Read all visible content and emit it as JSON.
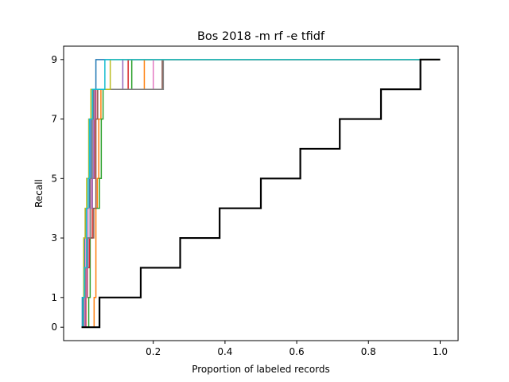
{
  "chart_data": {
    "type": "line",
    "title": "Bos 2018 -m rf -e tfidf",
    "xlabel": "Proportion of labeled records",
    "ylabel": "Recall",
    "xlim": [
      -0.05,
      1.05
    ],
    "ylim": [
      -0.45,
      9.45
    ],
    "xticks": [
      {
        "value": 0.2,
        "label": "0.2"
      },
      {
        "value": 0.4,
        "label": "0.4"
      },
      {
        "value": 0.6,
        "label": "0.6"
      },
      {
        "value": 0.8,
        "label": "0.8"
      },
      {
        "value": 1.0,
        "label": "1.0"
      }
    ],
    "yticks": [
      {
        "value": 0,
        "label": "0"
      },
      {
        "value": 1,
        "label": "1"
      },
      {
        "value": 3,
        "label": "3"
      },
      {
        "value": 5,
        "label": "5"
      },
      {
        "value": 7,
        "label": "7"
      },
      {
        "value": 9,
        "label": "9"
      }
    ],
    "grid": false,
    "series": [
      {
        "color": "#1f77b4",
        "width": 1.5,
        "steps": [
          [
            0,
            0
          ],
          [
            0.002,
            1
          ],
          [
            0.006,
            2
          ],
          [
            0.008,
            3
          ],
          [
            0.012,
            4
          ],
          [
            0.022,
            5
          ],
          [
            0.026,
            7
          ],
          [
            0.032,
            8
          ],
          [
            0.04,
            9
          ],
          [
            1.0,
            9
          ]
        ]
      },
      {
        "color": "#ff7f0e",
        "width": 1.5,
        "steps": [
          [
            0,
            0
          ],
          [
            0.035,
            1
          ],
          [
            0.04,
            4
          ],
          [
            0.044,
            5
          ],
          [
            0.048,
            7
          ],
          [
            0.054,
            8
          ],
          [
            0.175,
            9
          ],
          [
            1.0,
            9
          ]
        ]
      },
      {
        "color": "#2ca02c",
        "width": 1.5,
        "steps": [
          [
            0,
            0
          ],
          [
            0.02,
            1
          ],
          [
            0.024,
            4
          ],
          [
            0.05,
            5
          ],
          [
            0.055,
            7
          ],
          [
            0.06,
            8
          ],
          [
            0.14,
            9
          ],
          [
            1.0,
            9
          ]
        ]
      },
      {
        "color": "#d62728",
        "width": 1.5,
        "steps": [
          [
            0,
            0
          ],
          [
            0.012,
            1
          ],
          [
            0.016,
            2
          ],
          [
            0.022,
            3
          ],
          [
            0.03,
            5
          ],
          [
            0.036,
            7
          ],
          [
            0.04,
            8
          ],
          [
            0.13,
            9
          ],
          [
            1.0,
            9
          ]
        ]
      },
      {
        "color": "#9467bd",
        "width": 1.5,
        "steps": [
          [
            0,
            0
          ],
          [
            0.01,
            1
          ],
          [
            0.014,
            2
          ],
          [
            0.018,
            3
          ],
          [
            0.024,
            4
          ],
          [
            0.03,
            5
          ],
          [
            0.034,
            7
          ],
          [
            0.038,
            8
          ],
          [
            0.115,
            9
          ],
          [
            1.0,
            9
          ]
        ]
      },
      {
        "color": "#8c564b",
        "width": 1.5,
        "steps": [
          [
            0,
            0
          ],
          [
            0.008,
            1
          ],
          [
            0.012,
            2
          ],
          [
            0.016,
            3
          ],
          [
            0.034,
            4
          ],
          [
            0.04,
            7
          ],
          [
            0.045,
            8
          ],
          [
            0.225,
            9
          ],
          [
            1.0,
            9
          ]
        ]
      },
      {
        "color": "#e377c2",
        "width": 1.5,
        "steps": [
          [
            0,
            0
          ],
          [
            0.008,
            1
          ],
          [
            0.012,
            3
          ],
          [
            0.018,
            4
          ],
          [
            0.026,
            5
          ],
          [
            0.03,
            7
          ],
          [
            0.036,
            8
          ],
          [
            0.2,
            9
          ],
          [
            1.0,
            9
          ]
        ]
      },
      {
        "color": "#7f7f7f",
        "width": 1.5,
        "steps": [
          [
            0,
            0
          ],
          [
            0.006,
            1
          ],
          [
            0.01,
            2
          ],
          [
            0.016,
            3
          ],
          [
            0.024,
            5
          ],
          [
            0.03,
            7
          ],
          [
            0.034,
            8
          ],
          [
            0.228,
            9
          ],
          [
            1.0,
            9
          ]
        ]
      },
      {
        "color": "#bcbd22",
        "width": 1.5,
        "steps": [
          [
            0,
            0
          ],
          [
            0.004,
            1
          ],
          [
            0.006,
            3
          ],
          [
            0.01,
            4
          ],
          [
            0.014,
            5
          ],
          [
            0.02,
            7
          ],
          [
            0.026,
            8
          ],
          [
            0.08,
            9
          ],
          [
            1.0,
            9
          ]
        ]
      },
      {
        "color": "#17becf",
        "width": 1.5,
        "steps": [
          [
            0,
            0
          ],
          [
            0.004,
            1
          ],
          [
            0.008,
            2
          ],
          [
            0.014,
            4
          ],
          [
            0.018,
            5
          ],
          [
            0.022,
            7
          ],
          [
            0.03,
            8
          ],
          [
            0.065,
            9
          ],
          [
            1.0,
            9
          ]
        ]
      },
      {
        "color": "#000000",
        "width": 2.2,
        "steps": [
          [
            0,
            0
          ],
          [
            0.05,
            1
          ],
          [
            0.165,
            2
          ],
          [
            0.275,
            3
          ],
          [
            0.385,
            4
          ],
          [
            0.5,
            5
          ],
          [
            0.61,
            6
          ],
          [
            0.72,
            7
          ],
          [
            0.835,
            8
          ],
          [
            0.945,
            9
          ],
          [
            1.0,
            9
          ]
        ]
      }
    ]
  }
}
